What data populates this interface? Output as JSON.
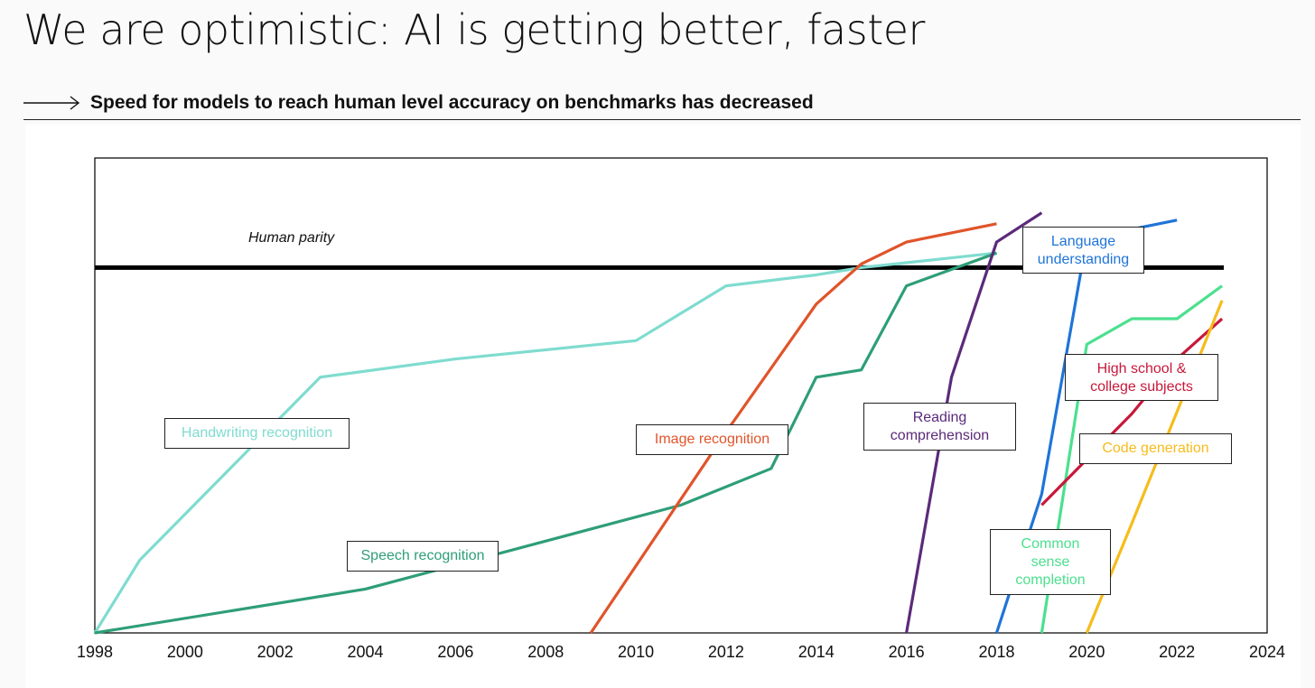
{
  "header": {
    "title": "We are optimistic: AI is getting better, faster",
    "subtitle": "Speed for models to reach human level accuracy on benchmarks has decreased"
  },
  "chart_data": {
    "type": "line",
    "xlim": [
      1998,
      2024
    ],
    "ylim": [
      -100,
      30
    ],
    "x_ticks": [
      "1998",
      "2000",
      "2002",
      "2004",
      "2006",
      "2008",
      "2010",
      "2012",
      "2014",
      "2016",
      "2018",
      "2020",
      "2022",
      "2024"
    ],
    "grid": false,
    "parity": {
      "label": "Human parity",
      "y": 0,
      "color": "#000000"
    },
    "series": [
      {
        "name": "Handwriting recognition",
        "color": "#7fdccf",
        "x": [
          1998,
          1999,
          2003,
          2006,
          2010,
          2012,
          2014,
          2015,
          2018
        ],
        "y": [
          -100,
          -80,
          -30,
          -25,
          -20,
          -5,
          -2,
          0,
          4
        ]
      },
      {
        "name": "Speech recognition",
        "color": "#2e9e77",
        "x": [
          1998,
          2004,
          2011,
          2013,
          2014,
          2015,
          2016,
          2018
        ],
        "y": [
          -100,
          -88,
          -65,
          -55,
          -30,
          -28,
          -5,
          4
        ]
      },
      {
        "name": "Image recognition",
        "color": "#e0542a",
        "x": [
          2009,
          2012,
          2014,
          2015,
          2016,
          2018
        ],
        "y": [
          -100,
          -45,
          -10,
          1,
          7,
          12
        ]
      },
      {
        "name": "Reading comprehension",
        "color": "#5b2a7a",
        "x": [
          2016,
          2017,
          2018,
          2019
        ],
        "y": [
          -100,
          -30,
          7,
          15
        ]
      },
      {
        "name": "Language understanding",
        "color": "#1f74d8",
        "x": [
          2018,
          2019,
          2020,
          2022
        ],
        "y": [
          -100,
          -62,
          8,
          13
        ]
      },
      {
        "name": "Common sense completion",
        "color": "#4be08e",
        "x": [
          2019,
          2020,
          2021,
          2022,
          2023
        ],
        "y": [
          -100,
          -21,
          -14,
          -14,
          -5
        ]
      },
      {
        "name": "High school & college subjects",
        "color": "#c8183a",
        "x": [
          2019,
          2021,
          2022,
          2023
        ],
        "y": [
          -65,
          -40,
          -25,
          -14
        ]
      },
      {
        "name": "Code generation",
        "color": "#f6bc1c",
        "x": [
          2020,
          2021,
          2023
        ],
        "y": [
          -100,
          -70,
          -9
        ]
      }
    ]
  },
  "labels": {
    "parity": "Human parity",
    "handwriting": "Handwriting recognition",
    "speech": "Speech recognition",
    "image": "Image recognition",
    "reading_1": "Reading",
    "reading_2": "comprehension",
    "language_1": "Language",
    "language_2": "understanding",
    "highschool_1": "High school &",
    "highschool_2": "college subjects",
    "code": "Code generation",
    "common_1": "Common",
    "common_2": "sense",
    "common_3": "completion"
  }
}
